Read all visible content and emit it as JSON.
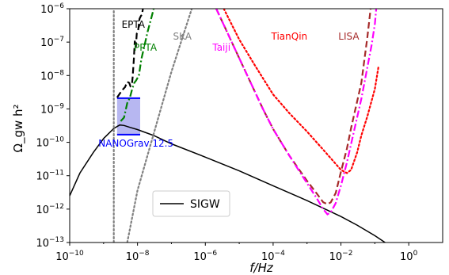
{
  "chart_data": {
    "type": "line",
    "xlabel": "f/Hz",
    "ylabel": "Ω_gw h²",
    "xscale": "log",
    "yscale": "log",
    "xlim": [
      1e-10,
      10
    ],
    "ylim": [
      1e-13,
      1e-06
    ],
    "x_ticks": [
      {
        "base": "10",
        "exp": "−10"
      },
      {
        "base": "10",
        "exp": "−8"
      },
      {
        "base": "10",
        "exp": "−6"
      },
      {
        "base": "10",
        "exp": "−4"
      },
      {
        "base": "10",
        "exp": "−2"
      },
      {
        "base": "10",
        "exp": "0"
      }
    ],
    "y_ticks": [
      {
        "base": "10",
        "exp": "−13"
      },
      {
        "base": "10",
        "exp": "−12"
      },
      {
        "base": "10",
        "exp": "−11"
      },
      {
        "base": "10",
        "exp": "−10"
      },
      {
        "base": "10",
        "exp": "−9"
      },
      {
        "base": "10",
        "exp": "−8"
      },
      {
        "base": "10",
        "exp": "−7"
      },
      {
        "base": "10",
        "exp": "−6"
      }
    ],
    "legend": {
      "position": "lower-center",
      "entries": [
        "SIGW"
      ]
    },
    "series": [
      {
        "name": "SIGW",
        "color": "#000000",
        "style": "solid",
        "x": [
          1e-10,
          2e-10,
          5e-10,
          1e-09,
          2e-09,
          3e-09,
          4e-09,
          6e-09,
          1e-08,
          3e-08,
          1e-07,
          1e-06,
          1e-05,
          0.0001,
          0.001,
          0.01,
          0.03,
          0.1,
          0.2
        ],
        "y": [
          2.5e-12,
          1.2e-11,
          5e-11,
          1.3e-10,
          2.6e-10,
          3.3e-10,
          3.2e-10,
          2.8e-10,
          2.4e-10,
          1.6e-10,
          9e-11,
          3.6e-11,
          1.4e-11,
          5e-12,
          1.8e-12,
          6e-13,
          3.3e-13,
          1.6e-13,
          1e-13
        ]
      },
      {
        "name": "EPTA",
        "color": "#000000",
        "style": "dashed",
        "x": [
          2.5e-09,
          3.5e-09,
          4.3e-09,
          5e-09,
          5.7e-09,
          6.2e-09,
          6.8e-09,
          7.2e-09,
          7.8e-09,
          8.3e-09,
          8.9e-09,
          9.5e-09,
          1.03e-08,
          1.08e-08,
          1.15e-08,
          1.25e-08,
          1.35e-08,
          1.45e-08
        ],
        "y": [
          2.2e-09,
          3.6e-09,
          4.5e-09,
          6.5e-09,
          6e-09,
          4.8e-09,
          5.2e-09,
          9e-09,
          3e-08,
          1.1e-07,
          7e-08,
          1.8e-07,
          2e-07,
          3e-07,
          5e-07,
          6e-07,
          6.6e-07,
          1e-06
        ]
      },
      {
        "name": "PPTA",
        "color": "#008000",
        "style": "dashdot",
        "x": [
          3.2e-09,
          4e-09,
          5e-09,
          6e-09,
          7e-09,
          8e-09,
          9e-09,
          1.1e-08,
          1.3e-08,
          1.6e-08,
          2e-08,
          2.5e-08,
          3e-08
        ],
        "y": [
          4.3e-10,
          5.5e-10,
          1.5e-09,
          2.2e-09,
          4e-09,
          6e-09,
          7e-09,
          1e-08,
          3.1e-08,
          7.8e-08,
          2.1e-07,
          4.9e-07,
          1e-06
        ]
      },
      {
        "name": "SKA",
        "color": "#808080",
        "style": "dotted",
        "x": [
          2e-09,
          2e-09,
          2e-09,
          2e-09
        ],
        "y": [
          1e-13,
          1e-09,
          1e-07,
          1e-06
        ]
      },
      {
        "name": "SKA",
        "color": "#808080",
        "style": "dotted",
        "x": [
          5e-09,
          1e-08,
          1e-07,
          4e-07
        ],
        "y": [
          1e-13,
          3.6e-12,
          1.3e-08,
          1e-06
        ]
      },
      {
        "name": "TianQin",
        "color": "#ff0000",
        "style": "dotted",
        "x": [
          3.5e-06,
          1e-05,
          3e-05,
          0.0001,
          0.0003,
          0.001,
          0.003,
          0.01,
          0.015,
          0.02,
          0.03,
          0.04,
          0.06,
          0.1,
          0.13
        ],
        "y": [
          1e-06,
          1.2e-07,
          1.9e-08,
          2.7e-09,
          7.5e-10,
          2.1e-10,
          6e-11,
          1.5e-11,
          1.2e-11,
          1.5e-11,
          5e-11,
          1.6e-10,
          6e-10,
          4e-09,
          2e-08
        ]
      },
      {
        "name": "LISA",
        "color": "#a52a2a",
        "style": "dashed",
        "x": [
          2.1e-06,
          1e-05,
          5e-05,
          0.0001,
          0.0003,
          0.001,
          0.002,
          0.003,
          0.004,
          0.005,
          0.007,
          0.01,
          0.015,
          0.02,
          0.04,
          0.06,
          0.075
        ],
        "y": [
          1e-06,
          3.3e-08,
          1e-09,
          2.5e-10,
          4e-11,
          7e-12,
          2.8e-12,
          1.6e-12,
          1.4e-12,
          1.6e-12,
          3e-12,
          1.3e-11,
          6.5e-11,
          2.7e-10,
          6e-09,
          1.4e-07,
          1e-06
        ]
      },
      {
        "name": "Taiji",
        "color": "#ff00ff",
        "style": "dashdot",
        "x": [
          2.1e-06,
          1e-05,
          5e-05,
          0.0001,
          0.0003,
          0.001,
          0.002,
          0.003,
          0.004,
          0.005,
          0.007,
          0.01,
          0.015,
          0.02,
          0.04,
          0.08,
          0.1,
          0.11
        ],
        "y": [
          1e-06,
          3.3e-08,
          1e-09,
          2.5e-10,
          4e-11,
          6e-12,
          2e-12,
          1e-12,
          7e-13,
          8e-13,
          1.5e-12,
          5e-12,
          2.5e-11,
          9e-11,
          2e-09,
          8e-08,
          3.5e-07,
          1e-06
        ]
      }
    ],
    "band": {
      "name": "NANOGrav 12.5",
      "color": "#0000ff",
      "fill": "#aaaaee",
      "x": [
        2.5e-09,
        1.2e-08
      ],
      "y": [
        1.7e-10,
        2.1e-09
      ]
    },
    "annotations": [
      {
        "text": "EPTA",
        "x": 7.5e-09,
        "y": 2.7e-07,
        "color": "#000000",
        "anchor": "middle"
      },
      {
        "text": "PPTA",
        "x": 1.7e-08,
        "y": 5.5e-08,
        "color": "#008000",
        "anchor": "middle"
      },
      {
        "text": "SKA",
        "x": 2.1e-07,
        "y": 1.2e-07,
        "color": "#808080",
        "anchor": "middle"
      },
      {
        "text": "TianQin",
        "x": 0.0003,
        "y": 1.2e-07,
        "color": "#ff0000",
        "anchor": "middle"
      },
      {
        "text": "LISA",
        "x": 0.017,
        "y": 1.2e-07,
        "color": "#a52a2a",
        "anchor": "middle"
      },
      {
        "text": "Taiji",
        "x": 3e-06,
        "y": 5.5e-08,
        "color": "#ff00ff",
        "anchor": "middle"
      },
      {
        "text": "NANOGrav 12.5",
        "x": 9e-09,
        "y": 7.5e-11,
        "color": "#0000ff",
        "anchor": "middle"
      }
    ]
  }
}
